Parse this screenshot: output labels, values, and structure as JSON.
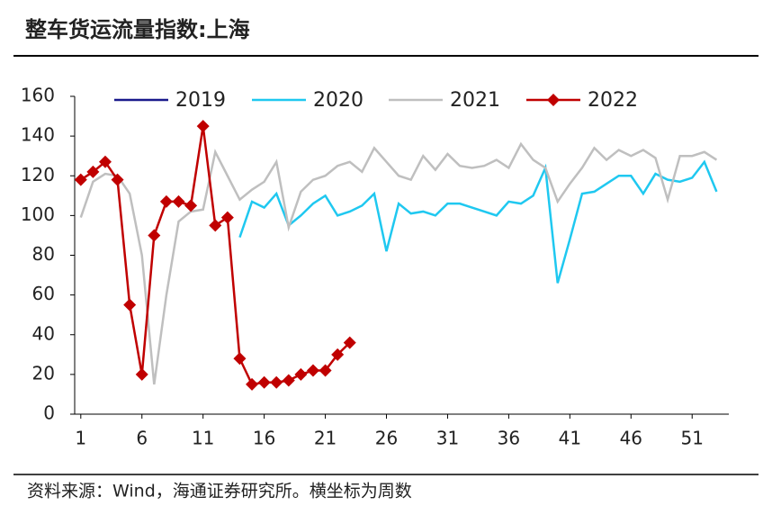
{
  "chart_data": {
    "type": "line",
    "title": "整车货运流量指数:上海",
    "source": "资料来源：Wind，海通证券研究所。横坐标为周数",
    "x": [
      1,
      2,
      3,
      4,
      5,
      6,
      7,
      8,
      9,
      10,
      11,
      12,
      13,
      14,
      15,
      16,
      17,
      18,
      19,
      20,
      21,
      22,
      23,
      24,
      25,
      26,
      27,
      28,
      29,
      30,
      31,
      32,
      33,
      34,
      35,
      36,
      37,
      38,
      39,
      40,
      41,
      42,
      43,
      44,
      45,
      46,
      47,
      48,
      49,
      50,
      51,
      52,
      53
    ],
    "xlim": [
      0.5,
      54
    ],
    "xticks": [
      1,
      6,
      11,
      16,
      21,
      26,
      31,
      36,
      41,
      46,
      51
    ],
    "ylim": [
      0,
      160
    ],
    "yticks": [
      0,
      20,
      40,
      60,
      80,
      100,
      120,
      140,
      160
    ],
    "series": [
      {
        "name": "2019",
        "color": "#1a1a8c",
        "values": [
          null,
          null,
          null,
          null,
          null,
          null,
          null,
          null,
          null,
          null,
          null,
          null,
          null,
          null,
          null,
          null,
          null,
          null,
          null,
          null,
          null,
          null,
          null,
          null,
          null,
          null,
          null,
          null,
          null,
          null,
          null,
          null,
          null,
          null,
          null,
          null,
          null,
          null,
          null,
          null,
          null,
          null,
          null,
          null,
          null,
          null,
          null,
          null,
          null,
          null,
          null,
          null,
          null
        ]
      },
      {
        "name": "2020",
        "color": "#1fc8f0",
        "values": [
          null,
          null,
          null,
          null,
          null,
          null,
          null,
          null,
          null,
          null,
          null,
          null,
          null,
          89,
          107,
          104,
          111,
          95,
          100,
          106,
          110,
          100,
          102,
          105,
          111,
          82,
          106,
          101,
          102,
          100,
          106,
          106,
          104,
          102,
          100,
          107,
          106,
          110,
          124,
          66,
          88,
          111,
          112,
          116,
          120,
          120,
          111,
          121,
          118,
          117,
          119,
          127,
          112
        ]
      },
      {
        "name": "2021",
        "color": "#bfbfbf",
        "values": [
          99,
          117,
          121,
          120,
          111,
          80,
          15,
          60,
          97,
          102,
          103,
          132,
          120,
          108,
          113,
          117,
          127,
          94,
          112,
          118,
          120,
          125,
          127,
          122,
          134,
          127,
          120,
          118,
          130,
          123,
          131,
          125,
          124,
          125,
          128,
          124,
          136,
          128,
          124,
          107,
          116,
          124,
          134,
          128,
          133,
          130,
          133,
          129,
          108,
          130,
          130,
          132,
          128
        ]
      },
      {
        "name": "2022",
        "color": "#c00000",
        "marker": "diamond",
        "values": [
          118,
          122,
          127,
          118,
          55,
          20,
          90,
          107,
          107,
          105,
          145,
          95,
          99,
          28,
          15,
          16,
          16,
          17,
          20,
          22,
          22,
          30,
          36,
          null,
          null,
          null,
          null,
          null,
          null,
          null,
          null,
          null,
          null,
          null,
          null,
          null,
          null,
          null,
          null,
          null,
          null,
          null,
          null,
          null,
          null,
          null,
          null,
          null,
          null,
          null,
          null,
          null,
          null
        ]
      }
    ]
  }
}
